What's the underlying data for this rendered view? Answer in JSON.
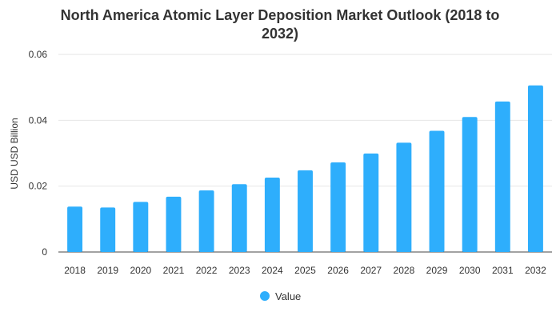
{
  "chart_data": {
    "type": "bar",
    "title_line1": "North America Atomic Layer Deposition Market Outlook (2018 to",
    "title_line2": "2032)",
    "ylabel": "USD USD Billion",
    "categories": [
      "2018",
      "2019",
      "2020",
      "2021",
      "2022",
      "2023",
      "2024",
      "2025",
      "2026",
      "2027",
      "2028",
      "2029",
      "2030",
      "2031",
      "2032"
    ],
    "series": [
      {
        "name": "Value",
        "color": "#2eaefc",
        "values": [
          0.0138,
          0.0135,
          0.0152,
          0.0168,
          0.0187,
          0.0206,
          0.0226,
          0.0248,
          0.0272,
          0.0299,
          0.0332,
          0.0368,
          0.041,
          0.0457,
          0.0506
        ]
      }
    ],
    "ylim": [
      0,
      0.06
    ],
    "yticks": [
      0,
      0.02,
      0.04,
      0.06
    ],
    "ytick_labels": [
      "0",
      "0.02",
      "0.04",
      "0.06"
    ],
    "grid": true,
    "legend_position": "bottom"
  }
}
